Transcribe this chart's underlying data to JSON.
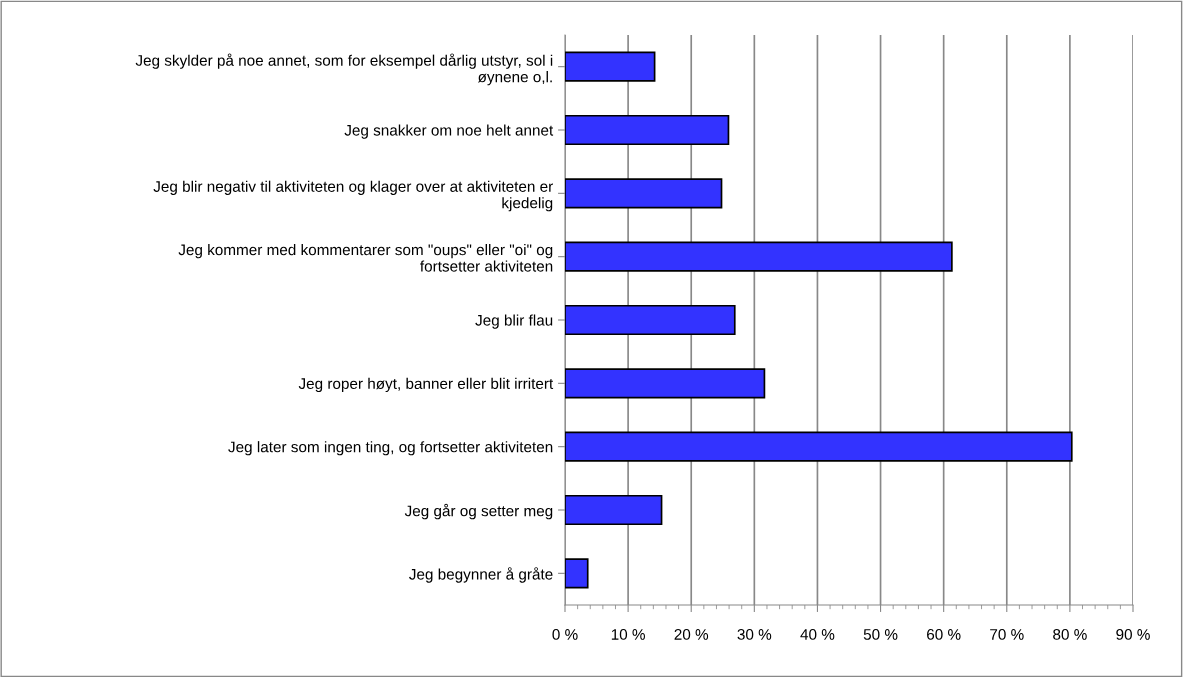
{
  "chart_data": {
    "type": "bar",
    "orientation": "horizontal",
    "categories": [
      "Jeg skylder på noe annet, som for eksempel dårlig utstyr, sol i\nøynene o,l.",
      "Jeg snakker om noe helt annet",
      "Jeg blir negativ til aktiviteten og klager over at aktiviteten er\nkjedelig",
      "Jeg kommer med kommentarer som \"oups\" eller \"oi\" og\nfortsetter aktiviteten",
      "Jeg blir flau",
      "Jeg roper høyt, banner eller blit irritert",
      "Jeg later som ingen ting, og fortsetter aktiviteten",
      "Jeg går og setter meg",
      "Jeg begynner å gråte"
    ],
    "values": [
      14.2,
      25.9,
      24.8,
      61.3,
      26.9,
      31.6,
      80.3,
      15.3,
      3.6
    ],
    "color": "#3333ff",
    "xlim": [
      0,
      90
    ],
    "xticks": [
      {
        "value": 0,
        "label": "0 %"
      },
      {
        "value": 10,
        "label": "10 %"
      },
      {
        "value": 20,
        "label": "20 %"
      },
      {
        "value": 30,
        "label": "30 %"
      },
      {
        "value": 40,
        "label": "40 %"
      },
      {
        "value": 50,
        "label": "50 %"
      },
      {
        "value": 60,
        "label": "60 %"
      },
      {
        "value": 70,
        "label": "70 %"
      },
      {
        "value": 80,
        "label": "80 %"
      },
      {
        "value": 90,
        "label": "90 %"
      }
    ],
    "grid": "x",
    "legend": false
  }
}
